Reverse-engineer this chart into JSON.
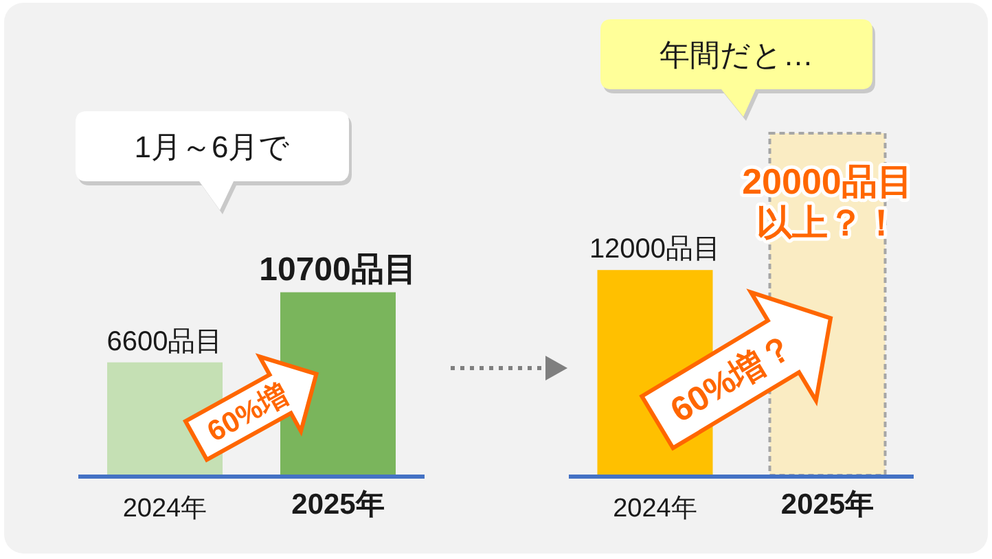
{
  "chart_data": [
    {
      "type": "bar",
      "title": "1月～6月で",
      "categories": [
        "2024年",
        "2025年"
      ],
      "values": [
        6600,
        10700
      ],
      "colors": [
        "#c5e0b4",
        "#7ab55c"
      ],
      "value_labels": [
        "6600品目",
        "10700品目"
      ],
      "annotations": [
        "60%増"
      ]
    },
    {
      "type": "bar",
      "title": "年間だと…",
      "categories": [
        "2024年",
        "2025年"
      ],
      "stacked": true,
      "series": [
        {
          "color": "#ffc000",
          "values": [
            12000,
            null
          ],
          "value_labels": [
            "12000品目",
            null
          ]
        },
        {
          "color": "#faecc3",
          "line_style": "dashed",
          "values": [
            null,
            20000
          ],
          "value_labels": [
            null,
            "20000品目以上？！"
          ]
        }
      ],
      "annotations": [
        "60%増？"
      ]
    }
  ]
}
